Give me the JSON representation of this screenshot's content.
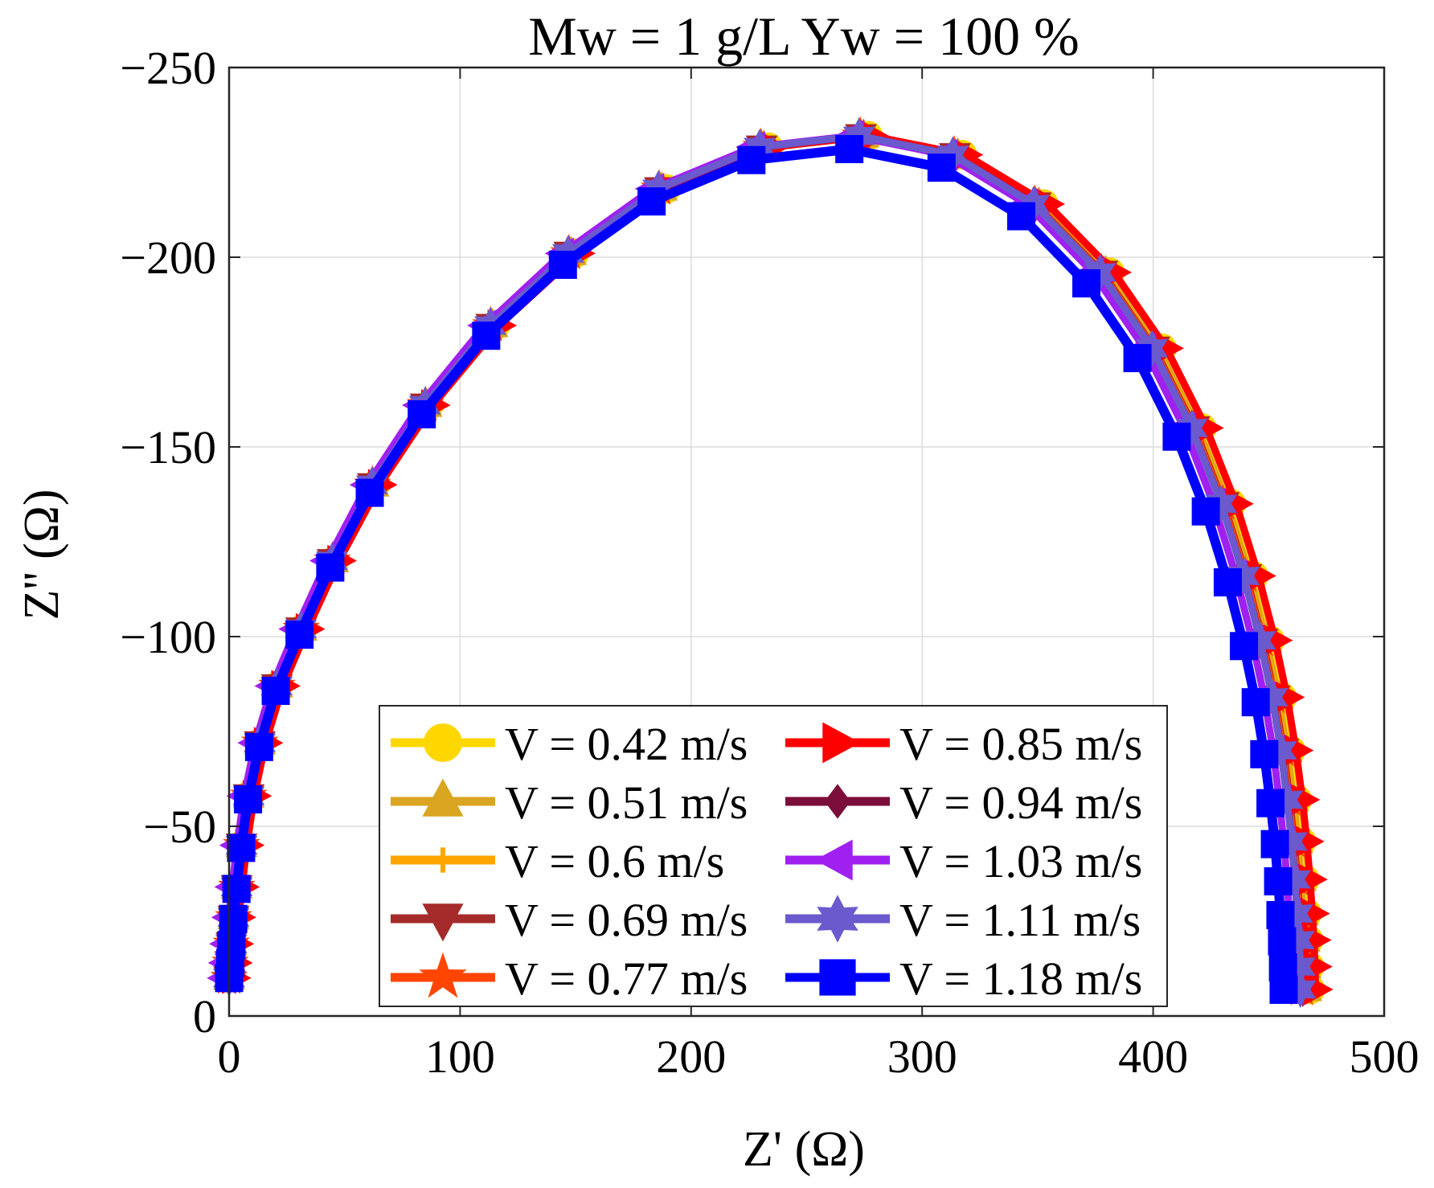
{
  "chart_data": {
    "type": "line",
    "title": "Mw = 1 g/L Yw = 100 %",
    "xlabel": "Z' (Ω)",
    "ylabel": "Z'' (Ω)",
    "xlim": [
      0,
      500
    ],
    "ylim": [
      0,
      -250
    ],
    "y_reversed": true,
    "grid": true,
    "xticks": [
      0,
      100,
      200,
      300,
      400,
      500
    ],
    "yticks": [
      -250,
      -200,
      -150,
      -100,
      -50,
      0
    ],
    "xtick_labels": [
      "0",
      "100",
      "200",
      "300",
      "400",
      "500"
    ],
    "ytick_labels": [
      "−250",
      "−200",
      "−150",
      "−100",
      "−50",
      "0"
    ],
    "legend": {
      "position": "bottom-center",
      "columns": 2
    },
    "series": [
      {
        "name": "V = 0.42 m/s",
        "color": "#FFD700",
        "marker": "circle",
        "x": [
          0.0,
          0.5,
          1.0,
          1.9,
          3.3,
          5.4,
          8.6,
          13.6,
          21.1,
          31.8,
          45.5,
          63.2,
          86.4,
          115.2,
          149.5,
          189.1,
          233.4,
          276.6,
          317.4,
          352.6,
          381.3,
          403.8,
          421.0,
          433.8,
          443.5,
          450.6,
          455.8,
          459.6,
          462.3,
          464.2,
          465.6,
          466.6,
          467.3,
          467.7,
          468.0
        ],
        "y": [
          -10.0,
          -14.0,
          -19.0,
          -26.0,
          -34.0,
          -45.0,
          -58.0,
          -72.0,
          -87.0,
          -102.0,
          -120.0,
          -140.0,
          -161.0,
          -182.0,
          -201.0,
          -218.0,
          -229.0,
          -232.0,
          -227.0,
          -214.0,
          -196.0,
          -176.0,
          -155.0,
          -135.0,
          -116.0,
          -99.0,
          -84.0,
          -70.0,
          -57.0,
          -46.0,
          -36.0,
          -27.0,
          -20.0,
          -13.0,
          -7.0
        ]
      },
      {
        "name": "V = 0.51 m/s",
        "color": "#DAA520",
        "marker": "triangle-up",
        "x": [
          0.0,
          0.5,
          1.0,
          1.9,
          3.3,
          5.4,
          8.5,
          13.4,
          20.8,
          31.4,
          45.0,
          62.5,
          85.5,
          114.0,
          148.0,
          187.3,
          231.4,
          274.6,
          315.4,
          350.6,
          379.4,
          402.0,
          419.3,
          432.1,
          441.8,
          448.9,
          454.1,
          457.9,
          460.6,
          462.5,
          463.9,
          464.9,
          465.6,
          466.0,
          466.3
        ],
        "y": [
          -10.0,
          -14.0,
          -19.0,
          -26.0,
          -34.0,
          -45.0,
          -58.0,
          -72.0,
          -87.0,
          -102.0,
          -120.0,
          -140.0,
          -161.0,
          -182.0,
          -201.0,
          -218.0,
          -229.0,
          -232.0,
          -227.0,
          -214.0,
          -196.0,
          -176.0,
          -155.0,
          -135.0,
          -116.0,
          -99.0,
          -84.0,
          -70.0,
          -57.0,
          -46.0,
          -36.0,
          -27.0,
          -20.0,
          -13.0,
          -7.0
        ]
      },
      {
        "name": "V = 0.6 m/s",
        "color": "#FFA500",
        "marker": "plus",
        "x": [
          0.0,
          0.5,
          1.0,
          1.9,
          3.3,
          5.4,
          8.5,
          13.4,
          20.8,
          31.3,
          44.9,
          62.4,
          85.3,
          113.8,
          147.7,
          186.9,
          230.9,
          274.0,
          314.7,
          349.8,
          378.6,
          401.1,
          418.4,
          431.2,
          440.9,
          448.0,
          453.2,
          457.0,
          459.7,
          461.6,
          463.0,
          464.0,
          464.7,
          465.1,
          465.4
        ],
        "y": [
          -10.0,
          -14.0,
          -19.0,
          -26.0,
          -34.0,
          -45.0,
          -58.0,
          -72.0,
          -87.0,
          -102.0,
          -120.0,
          -140.0,
          -161.0,
          -182.0,
          -201.0,
          -218.0,
          -229.0,
          -232.0,
          -227.0,
          -214.0,
          -196.0,
          -176.0,
          -155.0,
          -135.0,
          -116.0,
          -99.0,
          -84.0,
          -70.0,
          -57.0,
          -46.0,
          -36.0,
          -27.0,
          -20.0,
          -13.0,
          -7.0
        ]
      },
      {
        "name": "V = 0.69 m/s",
        "color": "#A52A2A",
        "marker": "triangle-down",
        "x": [
          0.0,
          0.5,
          1.0,
          1.9,
          3.3,
          5.4,
          8.5,
          13.3,
          20.7,
          31.2,
          44.8,
          62.2,
          85.1,
          113.5,
          147.3,
          186.5,
          230.5,
          273.5,
          314.2,
          349.2,
          378.0,
          400.5,
          417.8,
          430.6,
          440.3,
          447.4,
          452.6,
          456.4,
          459.1,
          461.0,
          462.4,
          463.4,
          464.1,
          464.5,
          464.8
        ],
        "y": [
          -10.0,
          -14.0,
          -19.0,
          -26.0,
          -34.0,
          -45.0,
          -58.0,
          -72.0,
          -87.0,
          -102.0,
          -120.0,
          -140.0,
          -161.0,
          -182.0,
          -201.0,
          -218.0,
          -229.0,
          -232.0,
          -227.0,
          -214.0,
          -196.0,
          -176.0,
          -155.0,
          -135.0,
          -116.0,
          -99.0,
          -84.0,
          -70.0,
          -57.0,
          -46.0,
          -36.0,
          -27.0,
          -20.0,
          -13.0,
          -7.0
        ]
      },
      {
        "name": "V = 0.77 m/s",
        "color": "#FF4500",
        "marker": "star",
        "x": [
          0.0,
          0.5,
          1.0,
          1.9,
          3.3,
          5.4,
          8.5,
          13.3,
          20.7,
          31.2,
          44.7,
          62.1,
          85.0,
          113.3,
          147.1,
          186.2,
          230.2,
          273.2,
          313.9,
          348.9,
          377.6,
          400.1,
          417.4,
          430.2,
          439.9,
          447.0,
          452.2,
          456.0,
          458.7,
          460.6,
          462.0,
          463.0,
          463.7,
          464.1,
          464.4
        ],
        "y": [
          -10.0,
          -14.0,
          -19.0,
          -26.0,
          -34.0,
          -45.0,
          -58.0,
          -72.0,
          -87.0,
          -102.0,
          -120.0,
          -140.0,
          -161.0,
          -182.0,
          -201.0,
          -218.0,
          -229.0,
          -232.0,
          -227.0,
          -214.0,
          -196.0,
          -176.0,
          -155.0,
          -135.0,
          -116.0,
          -99.0,
          -84.0,
          -70.0,
          -57.0,
          -46.0,
          -36.0,
          -27.0,
          -20.0,
          -13.0,
          -7.0
        ]
      },
      {
        "name": "V = 0.85 m/s",
        "color": "#FF0000",
        "marker": "triangle-right",
        "x": [
          2.0,
          2.6,
          3.2,
          4.1,
          5.6,
          7.7,
          10.9,
          15.8,
          23.3,
          33.9,
          47.6,
          65.2,
          88.2,
          116.9,
          151.0,
          190.4,
          234.7,
          278.0,
          318.8,
          354.2,
          383.1,
          405.7,
          423.0,
          435.9,
          445.6,
          452.8,
          458.0,
          461.8,
          464.6,
          466.5,
          467.9,
          468.9,
          469.6,
          470.0,
          470.3
        ],
        "y": [
          -10.0,
          -14.0,
          -19.0,
          -26.0,
          -34.0,
          -45.0,
          -58.0,
          -72.0,
          -87.0,
          -102.0,
          -120.0,
          -140.0,
          -161.0,
          -182.0,
          -201.0,
          -218.0,
          -229.0,
          -232.0,
          -227.0,
          -214.0,
          -196.0,
          -176.0,
          -155.0,
          -135.0,
          -116.0,
          -99.0,
          -84.0,
          -70.0,
          -57.0,
          -46.0,
          -36.0,
          -27.0,
          -20.0,
          -13.0,
          -7.0
        ]
      },
      {
        "name": "V = 0.94 m/s",
        "color": "#7B0D3A",
        "marker": "diamond",
        "x": [
          0.0,
          0.5,
          1.0,
          1.9,
          3.3,
          5.4,
          8.5,
          13.3,
          20.6,
          31.1,
          44.6,
          62.0,
          84.8,
          113.1,
          146.8,
          185.9,
          229.8,
          272.8,
          313.4,
          348.4,
          377.1,
          399.6,
          416.8,
          429.6,
          439.3,
          446.4,
          451.6,
          455.4,
          458.1,
          460.0,
          461.4,
          462.4,
          463.1,
          463.5,
          463.8
        ],
        "y": [
          -10.0,
          -14.0,
          -19.0,
          -26.0,
          -34.0,
          -45.0,
          -58.0,
          -72.0,
          -87.0,
          -102.0,
          -120.0,
          -140.0,
          -161.0,
          -182.0,
          -201.0,
          -218.0,
          -229.0,
          -232.0,
          -227.0,
          -214.0,
          -196.0,
          -176.0,
          -155.0,
          -135.0,
          -116.0,
          -99.0,
          -84.0,
          -70.0,
          -57.0,
          -46.0,
          -36.0,
          -27.0,
          -20.0,
          -13.0,
          -7.0
        ]
      },
      {
        "name": "V = 1.03 m/s",
        "color": "#A020F0",
        "marker": "triangle-left",
        "x": [
          -2.0,
          -1.5,
          -1.0,
          -0.1,
          1.3,
          3.4,
          6.5,
          11.3,
          18.6,
          29.0,
          42.5,
          59.8,
          82.5,
          110.7,
          144.3,
          183.3,
          227.0,
          269.9,
          310.3,
          345.2,
          373.8,
          396.2,
          413.4,
          426.1,
          435.8,
          442.9,
          448.1,
          451.9,
          454.6,
          456.5,
          457.9,
          458.9,
          459.6,
          460.0,
          460.3
        ],
        "y": [
          -10.0,
          -14.0,
          -19.0,
          -26.0,
          -34.0,
          -45.0,
          -58.0,
          -72.0,
          -87.0,
          -102.0,
          -120.0,
          -140.0,
          -161.0,
          -182.0,
          -201.0,
          -218.0,
          -229.0,
          -232.0,
          -227.0,
          -214.0,
          -196.0,
          -176.0,
          -155.0,
          -135.0,
          -116.0,
          -99.0,
          -84.0,
          -70.0,
          -57.0,
          -46.0,
          -36.0,
          -27.0,
          -20.0,
          -13.0,
          -7.0
        ]
      },
      {
        "name": "V = 1.11 m/s",
        "color": "#6A5ACD",
        "marker": "hexagram",
        "x": [
          0.0,
          0.5,
          1.0,
          1.9,
          3.3,
          5.4,
          8.5,
          13.3,
          20.6,
          31.1,
          44.6,
          61.9,
          84.8,
          113.1,
          146.8,
          185.8,
          229.7,
          272.7,
          313.3,
          348.3,
          377.0,
          399.5,
          416.7,
          429.5,
          439.2,
          446.3,
          451.5,
          455.3,
          458.0,
          459.9,
          461.3,
          462.3,
          463.0,
          463.4,
          463.7
        ],
        "y": [
          -10.0,
          -14.0,
          -19.0,
          -26.0,
          -34.0,
          -45.0,
          -58.0,
          -72.0,
          -87.0,
          -102.0,
          -120.0,
          -140.0,
          -161.0,
          -182.0,
          -201.0,
          -218.0,
          -229.0,
          -232.0,
          -227.0,
          -214.0,
          -196.0,
          -176.0,
          -155.0,
          -135.0,
          -116.0,
          -99.0,
          -84.0,
          -70.0,
          -57.0,
          -46.0,
          -36.0,
          -27.0,
          -20.0,
          -13.0,
          -7.0
        ]
      },
      {
        "name": "V = 1.18 m/s",
        "color": "#0000FF",
        "marker": "square",
        "x": [
          0.0,
          0.5,
          1.0,
          1.8,
          3.2,
          5.2,
          8.2,
          13.0,
          20.2,
          30.5,
          43.8,
          60.9,
          83.4,
          111.3,
          144.5,
          182.9,
          226.1,
          268.5,
          308.4,
          342.9,
          371.1,
          393.2,
          410.2,
          422.8,
          432.3,
          439.3,
          444.4,
          448.1,
          450.8,
          452.7,
          454.1,
          455.1,
          455.8,
          456.2,
          456.5
        ],
        "y": [
          -10.0,
          -14.0,
          -18.7,
          -25.6,
          -33.5,
          -44.3,
          -57.1,
          -70.9,
          -85.7,
          -100.5,
          -118.2,
          -137.9,
          -158.6,
          -179.3,
          -198.0,
          -214.7,
          -225.6,
          -228.5,
          -223.6,
          -210.8,
          -193.1,
          -173.4,
          -152.7,
          -133.0,
          -114.3,
          -97.5,
          -82.7,
          -69.0,
          -56.1,
          -45.3,
          -35.5,
          -26.6,
          -19.7,
          -12.8,
          -6.9
        ]
      }
    ]
  }
}
